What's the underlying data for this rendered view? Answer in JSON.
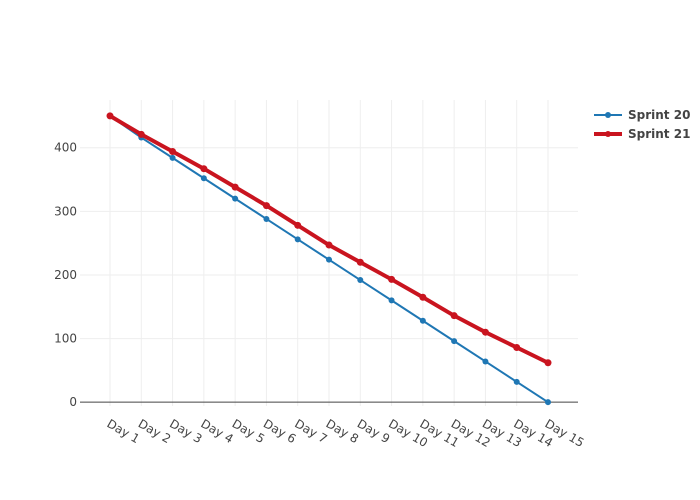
{
  "chart_data": {
    "type": "line",
    "title": "",
    "xlabel": "",
    "ylabel": "",
    "categories": [
      "Day 1",
      "Day 2",
      "Day 3",
      "Day 4",
      "Day 5",
      "Day 6",
      "Day 7",
      "Day 8",
      "Day 9",
      "Day 10",
      "Day 11",
      "Day 12",
      "Day 13",
      "Day 14",
      "Day 15"
    ],
    "ylim": [
      -6,
      475
    ],
    "yticks": [
      0,
      100,
      200,
      300,
      400
    ],
    "ytick_labels": [
      "0",
      "100",
      "200",
      "300",
      "400"
    ],
    "grid": true,
    "legend_position": "top-right",
    "series": [
      {
        "name": "Sprint 20",
        "color": "#1f77b4",
        "values": [
          450,
          416,
          384,
          352,
          320,
          288,
          256,
          224,
          192,
          160,
          128,
          96,
          64,
          32,
          0
        ]
      },
      {
        "name": "Sprint 21",
        "color": "#c9141f",
        "values": [
          450,
          421,
          394,
          367,
          338,
          309,
          278,
          247,
          220,
          193,
          165,
          136,
          110,
          86,
          62
        ]
      }
    ]
  }
}
